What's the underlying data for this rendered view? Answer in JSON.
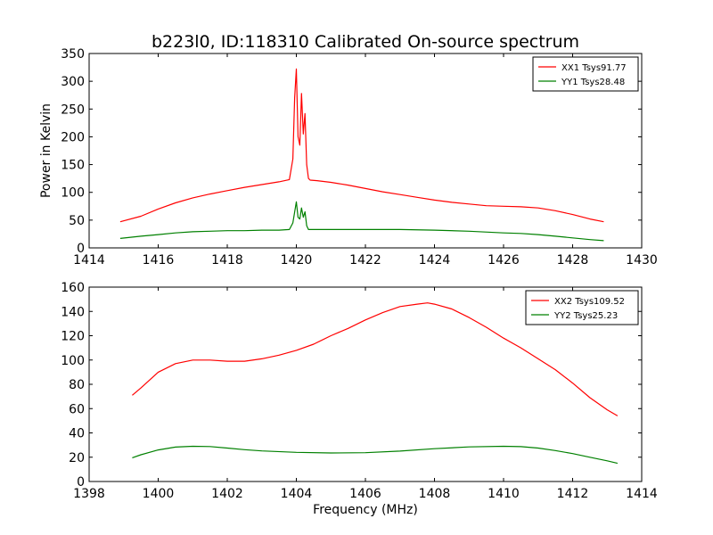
{
  "title": "b223l0, ID:118310 Calibrated On-source spectrum",
  "chart_data": [
    {
      "type": "line",
      "title": "b223l0, ID:118310 Calibrated On-source spectrum",
      "xlabel": "",
      "ylabel": "Power in Kelvin",
      "xlim": [
        1414,
        1430
      ],
      "ylim": [
        0,
        350
      ],
      "xticks": [
        1414,
        1416,
        1418,
        1420,
        1422,
        1424,
        1426,
        1428,
        1430
      ],
      "yticks": [
        0,
        50,
        100,
        150,
        200,
        250,
        300,
        350
      ],
      "grid": false,
      "legend_position": "top-right",
      "series": [
        {
          "name": "XX1 Tsys91.77",
          "color": "#ff0000",
          "x": [
            1414.9,
            1415.5,
            1416.0,
            1416.5,
            1417.0,
            1417.5,
            1418.0,
            1418.5,
            1419.0,
            1419.5,
            1419.8,
            1419.9,
            1419.95,
            1420.0,
            1420.05,
            1420.1,
            1420.15,
            1420.2,
            1420.25,
            1420.3,
            1420.35,
            1420.4,
            1420.6,
            1421.0,
            1421.5,
            1422.0,
            1422.5,
            1423.0,
            1423.5,
            1424.0,
            1424.5,
            1425.0,
            1425.5,
            1426.0,
            1426.5,
            1427.0,
            1427.5,
            1428.0,
            1428.5,
            1428.9
          ],
          "y": [
            47,
            57,
            70,
            81,
            90,
            97,
            103,
            109,
            114,
            119,
            123,
            160,
            270,
            322,
            200,
            185,
            278,
            205,
            242,
            150,
            125,
            122,
            121,
            118,
            113,
            107,
            101,
            96,
            91,
            86,
            82,
            79,
            76,
            75,
            74,
            72,
            67,
            60,
            52,
            47
          ]
        },
        {
          "name": "YY1 Tsys28.48",
          "color": "#008000",
          "x": [
            1414.9,
            1415.5,
            1416.0,
            1416.5,
            1417.0,
            1417.5,
            1418.0,
            1418.5,
            1419.0,
            1419.5,
            1419.8,
            1419.9,
            1420.0,
            1420.05,
            1420.1,
            1420.15,
            1420.2,
            1420.25,
            1420.3,
            1420.35,
            1420.6,
            1421.0,
            1422.0,
            1423.0,
            1424.0,
            1425.0,
            1426.0,
            1426.5,
            1427.0,
            1427.5,
            1428.0,
            1428.5,
            1428.9
          ],
          "y": [
            17,
            21,
            24,
            27,
            29,
            30,
            31,
            31,
            32,
            32,
            33,
            45,
            83,
            55,
            52,
            72,
            55,
            65,
            40,
            33,
            33,
            33,
            33,
            33,
            32,
            30,
            27,
            26,
            24,
            21,
            18,
            15,
            13
          ]
        }
      ]
    },
    {
      "type": "line",
      "title": "",
      "xlabel": "Frequency (MHz)",
      "ylabel": "",
      "xlim": [
        1398,
        1414
      ],
      "ylim": [
        0,
        160
      ],
      "xticks": [
        1398,
        1400,
        1402,
        1404,
        1406,
        1408,
        1410,
        1412,
        1414
      ],
      "yticks": [
        0,
        20,
        40,
        60,
        80,
        100,
        120,
        140,
        160
      ],
      "grid": false,
      "legend_position": "top-right",
      "series": [
        {
          "name": "XX2 Tsys109.52",
          "color": "#ff0000",
          "x": [
            1399.25,
            1399.5,
            1400.0,
            1400.5,
            1401.0,
            1401.5,
            1402.0,
            1402.5,
            1403.0,
            1403.5,
            1404.0,
            1404.5,
            1405.0,
            1405.5,
            1406.0,
            1406.5,
            1407.0,
            1407.5,
            1407.8,
            1408.0,
            1408.5,
            1409.0,
            1409.5,
            1410.0,
            1410.5,
            1411.0,
            1411.5,
            1412.0,
            1412.5,
            1413.0,
            1413.3
          ],
          "y": [
            71,
            77,
            90,
            97,
            100,
            100,
            99,
            99,
            101,
            104,
            108,
            113,
            120,
            126,
            133,
            139,
            144,
            146,
            147,
            146,
            142,
            135,
            127,
            118,
            110,
            101,
            92,
            81,
            69,
            59,
            54
          ]
        },
        {
          "name": "YY2 Tsys25.23",
          "color": "#008000",
          "x": [
            1399.25,
            1399.5,
            1400.0,
            1400.5,
            1401.0,
            1401.5,
            1402.0,
            1402.5,
            1403.0,
            1404.0,
            1405.0,
            1406.0,
            1407.0,
            1408.0,
            1409.0,
            1410.0,
            1410.5,
            1411.0,
            1411.5,
            1412.0,
            1412.5,
            1413.0,
            1413.3
          ],
          "y": [
            19.5,
            22,
            26,
            28.3,
            29,
            28.8,
            27.5,
            26.2,
            25.2,
            24,
            23.5,
            23.7,
            25,
            27,
            28.5,
            29,
            28.7,
            27.5,
            25.5,
            23,
            20,
            17,
            15
          ]
        }
      ]
    }
  ]
}
